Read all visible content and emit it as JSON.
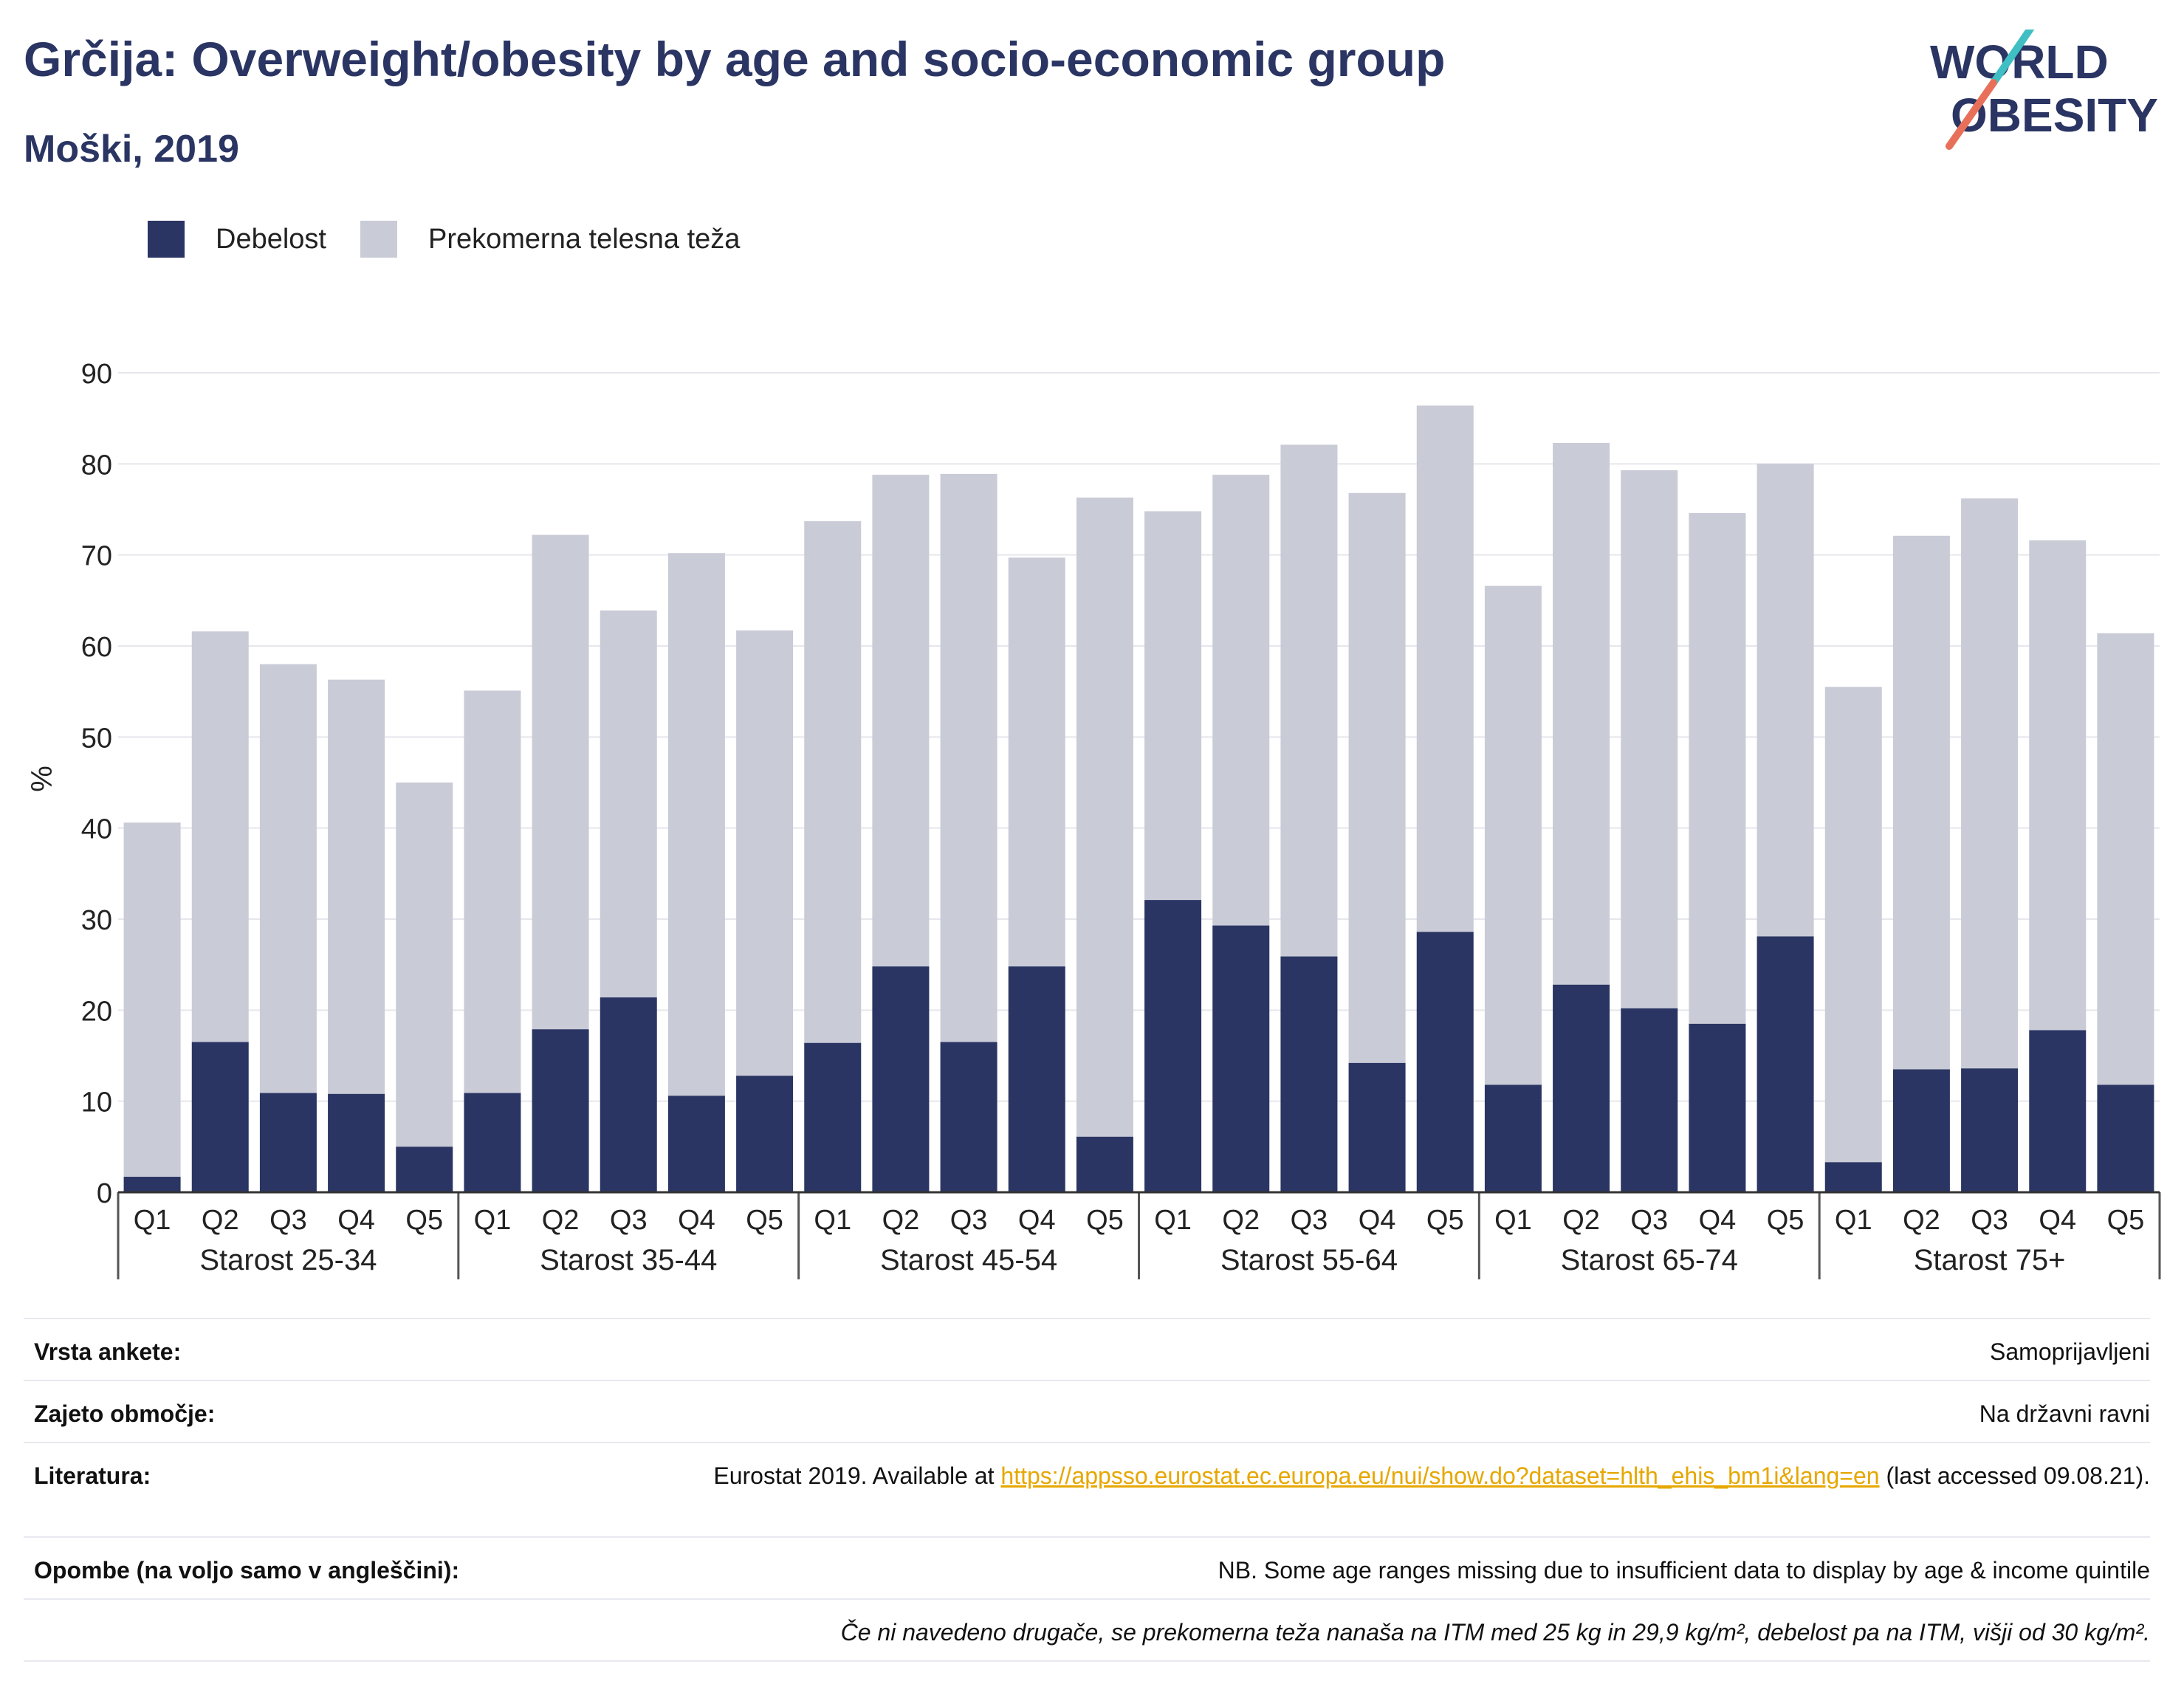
{
  "header": {
    "title": "Grčija: Overweight/obesity by age and socio-economic group",
    "subtitle": "Moški, 2019",
    "logo_line1": "WORLD",
    "logo_line2": "OBESITY"
  },
  "colors": {
    "obesity": "#2a3563",
    "overweight": "#c9cbd7",
    "accent": "#e6a700",
    "title": "#2a3563"
  },
  "chart_data": {
    "type": "bar",
    "stacked": true,
    "ylabel": "%",
    "ylim": [
      0,
      90
    ],
    "yticks": [
      0,
      10,
      20,
      30,
      40,
      50,
      60,
      70,
      80,
      90
    ],
    "grid": true,
    "legend_position": "top-left",
    "groups": [
      "Starost 25-34",
      "Starost 35-44",
      "Starost 45-54",
      "Starost 55-64",
      "Starost 65-74",
      "Starost 75+"
    ],
    "categories": [
      "Q1",
      "Q2",
      "Q3",
      "Q4",
      "Q5"
    ],
    "series": [
      {
        "name": "Debelost",
        "color": "#2a3563",
        "values": [
          [
            1.7,
            16.5,
            10.9,
            10.8,
            5.0
          ],
          [
            10.9,
            17.9,
            21.4,
            10.6,
            12.8
          ],
          [
            16.4,
            24.8,
            16.5,
            24.8,
            6.1
          ],
          [
            32.1,
            29.3,
            25.9,
            14.2,
            28.6
          ],
          [
            11.8,
            22.8,
            20.2,
            18.5,
            28.1
          ],
          [
            3.3,
            13.5,
            13.6,
            17.8,
            11.8
          ]
        ]
      },
      {
        "name": "Prekomerna telesna teža",
        "color": "#c9cbd7",
        "values": [
          [
            38.9,
            45.1,
            47.1,
            45.5,
            40.0
          ],
          [
            44.2,
            54.3,
            42.5,
            59.6,
            48.9
          ],
          [
            57.3,
            54.0,
            62.4,
            44.9,
            70.2
          ],
          [
            42.7,
            49.5,
            56.2,
            62.6,
            57.8
          ],
          [
            54.8,
            59.5,
            59.1,
            56.1,
            51.9
          ],
          [
            52.2,
            58.6,
            62.6,
            53.8,
            49.6
          ]
        ]
      }
    ]
  },
  "meta": {
    "survey_label": "Vrsta ankete:",
    "survey_value": "Samoprijavljeni",
    "area_label": "Zajeto območje:",
    "area_value": "Na državni ravni",
    "lit_label": "Literatura:",
    "lit_pre": "Eurostat 2019. Available at ",
    "lit_link": "https://appsso.eurostat.ec.europa.eu/nui/show.do?dataset=hlth_ehis_bm1i&lang=en",
    "lit_post": " (last accessed 09.08.21).",
    "notes_label": "Opombe (na voljo samo v angleščini):",
    "notes_value": "NB. Some age ranges missing due to insufficient data to display by age & income quintile",
    "footnote": "Če ni navedeno drugače, se prekomerna teža nanaša na ITM med 25 kg in 29,9 kg/m², debelost pa na ITM, višji od 30 kg/m²."
  }
}
